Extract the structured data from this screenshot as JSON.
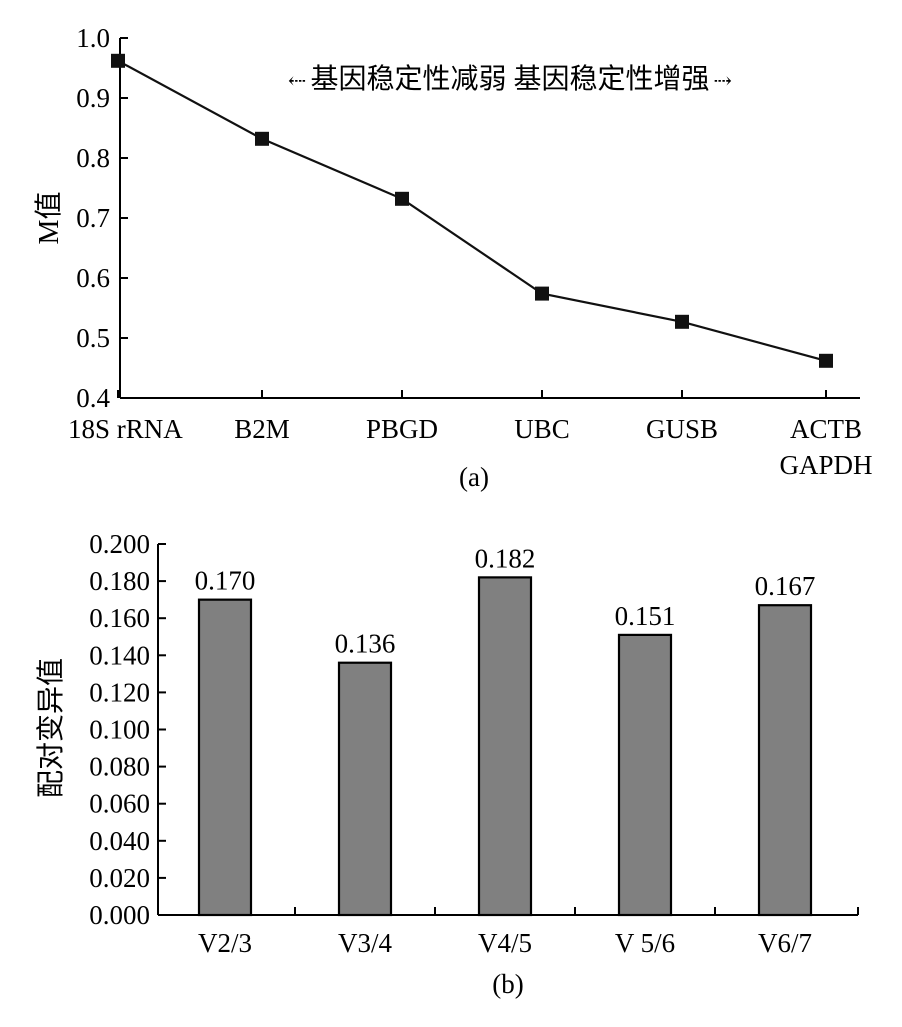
{
  "chart_data": [
    {
      "panel_label": "(a)",
      "type": "line",
      "categories": [
        "18S rRNA",
        "B2M",
        "PBGD",
        "UBC",
        "GUSB",
        "ACTB GAPDH"
      ],
      "category_lines": [
        [
          "18S rRNA"
        ],
        [
          "B2M"
        ],
        [
          "PBGD"
        ],
        [
          "UBC"
        ],
        [
          "GUSB"
        ],
        [
          "ACTB",
          "GAPDH"
        ]
      ],
      "series": [
        {
          "values": [
            0.962,
            0.832,
            0.732,
            0.574,
            0.527,
            0.462
          ]
        }
      ],
      "ylabel": "M值",
      "ylim": [
        0.4,
        1.0
      ],
      "yticks": [
        "0.4",
        "0.5",
        "0.6",
        "0.7",
        "0.8",
        "0.9",
        "1.0"
      ],
      "annotation": {
        "left_arrow": "⇠",
        "text": "基因稳定性减弱  基因稳定性增强",
        "right_arrow": "⇢"
      },
      "marker": "square",
      "color": "#111111",
      "grid": false
    },
    {
      "panel_label": "(b)",
      "type": "bar",
      "categories": [
        "V2/3",
        "V3/4",
        "V4/5",
        "V 5/6",
        "V6/7"
      ],
      "values": [
        0.17,
        0.136,
        0.182,
        0.151,
        0.167
      ],
      "data_labels": [
        "0.170",
        "0.136",
        "0.182",
        "0.151",
        "0.167"
      ],
      "ylabel": "配对变异值",
      "ylim": [
        0.0,
        0.2
      ],
      "yticks": [
        "0.000",
        "0.020",
        "0.040",
        "0.060",
        "0.080",
        "0.100",
        "0.120",
        "0.140",
        "0.160",
        "0.180",
        "0.200"
      ],
      "bar_color": "#808080",
      "grid": false
    }
  ]
}
